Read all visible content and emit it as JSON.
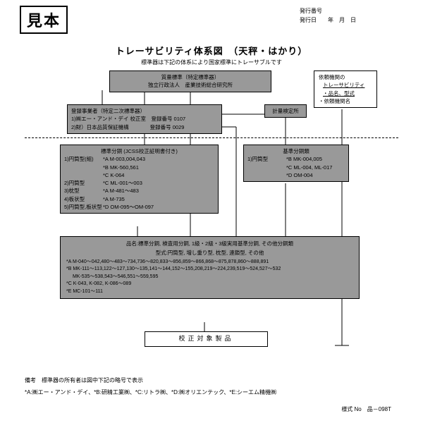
{
  "sample": "見本",
  "hdr": {
    "num": "発行番号",
    "date": "発行日　　年　月　日"
  },
  "title": "トレーサビリティ体系図　（天秤・はかり）",
  "sub": "標準器は下記の体系により国家標準にトレーサブルです",
  "quality": {
    "l1": "質量標準（特定標準器）",
    "l2": "独立行政法人　産業技術総合研究所"
  },
  "req": {
    "l1": "依頼機関の",
    "l2": "トレーサビリティ",
    "l3": "・品名、型式",
    "l4": "・依頼機関名"
  },
  "reg": {
    "l1": "登録事業者（特定二次標準器）",
    "l2": "1)㈱エー・アンド・デイ 校正室　登録番号 0107",
    "l3": "2)財）日本品質保証機構　　　　登録番号 0029"
  },
  "insp": "計量検定所",
  "std": {
    "t": "標準分銅 (JCSS校正証明書付き)",
    "r": [
      [
        "1)円筒型(組)",
        "*A M-003,004,043"
      ],
      [
        "",
        "*B MK-560,561"
      ],
      [
        "",
        "*C K-064"
      ],
      [
        "2)円筒型",
        "*C ML-001～003"
      ],
      [
        "3)枕型",
        "*A M-481～483"
      ],
      [
        "4)板状型",
        "*A M-735"
      ],
      [
        "5)円筒型,板状型",
        "*D OM-095～OM-097"
      ]
    ]
  },
  "base": {
    "t": "基準分銅類",
    "r": [
      [
        "1)円筒型",
        "*B MK-004,005"
      ],
      [
        "",
        "*C ML-004, ML-017"
      ],
      [
        "",
        "*D OM-004"
      ]
    ]
  },
  "prod": {
    "l1": "品名:標準分銅, 検査用分銅, 1級・2級・3級実用基準分銅, その他分銅類",
    "l2": "型式:円筒型, 増し重り型, 枕型, 連鎖型, その他",
    "d": [
      "*A M-040～042,480～483～734,736～820,833～856,859～866,868～875,878,860～888,891",
      "*B MK-111～113,122～127,130～135,141～144,152～155,208,219～224,239,519～524,527～532",
      "　 MK-535～538,543～546,551～559,595",
      "*C K-043, K-082, K-086～089",
      "*E MC-101～111"
    ]
  },
  "cal": "校正対象製品",
  "note": {
    "l1": "備考　標準器の所有者は図中下記の略号で表示",
    "l2": "*A:㈱エー・アンド・デイ、*B:研精工業㈱、*C:リトラ㈱、*D:㈱オリエンテック、*E:シーエム精機㈱"
  },
  "form": "様式 No　品－098T"
}
